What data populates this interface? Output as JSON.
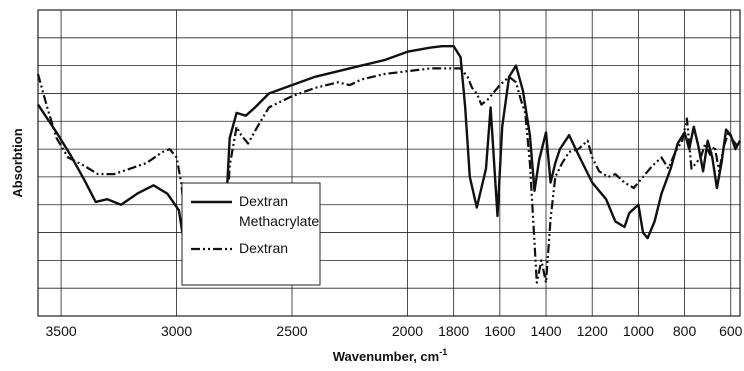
{
  "chart_data": {
    "type": "line",
    "title": "",
    "xlabel": "Wavenumber, cm",
    "xlabel_superscript": "-1",
    "ylabel": "Absorbtion",
    "xlim": [
      3600,
      560
    ],
    "x_reversed": true,
    "ylim": [
      0,
      11
    ],
    "y_ticks_labeled": false,
    "x_ticks": [
      3500,
      3000,
      2500,
      2000,
      1800,
      1600,
      1400,
      1200,
      1000,
      800,
      600
    ],
    "grid": true,
    "legend_position": "center-left",
    "series": [
      {
        "name": "Dextran Methacrylate",
        "style": "solid",
        "points": [
          [
            3600,
            7.6
          ],
          [
            3520,
            6.6
          ],
          [
            3460,
            5.8
          ],
          [
            3400,
            4.9
          ],
          [
            3350,
            4.1
          ],
          [
            3300,
            4.2
          ],
          [
            3240,
            4.0
          ],
          [
            3170,
            4.4
          ],
          [
            3100,
            4.7
          ],
          [
            3040,
            4.4
          ],
          [
            2990,
            3.8
          ],
          [
            2960,
            2.2
          ],
          [
            2930,
            1.8
          ],
          [
            2900,
            1.3
          ],
          [
            2850,
            1.5
          ],
          [
            2800,
            1.6
          ],
          [
            2770,
            6.4
          ],
          [
            2740,
            7.3
          ],
          [
            2700,
            7.2
          ],
          [
            2660,
            7.5
          ],
          [
            2600,
            8.0
          ],
          [
            2500,
            8.3
          ],
          [
            2400,
            8.6
          ],
          [
            2300,
            8.8
          ],
          [
            2200,
            9.0
          ],
          [
            2100,
            9.2
          ],
          [
            2000,
            9.5
          ],
          [
            1900,
            9.65
          ],
          [
            1850,
            9.7
          ],
          [
            1800,
            9.7
          ],
          [
            1770,
            9.3
          ],
          [
            1750,
            7.5
          ],
          [
            1730,
            5.0
          ],
          [
            1700,
            3.9
          ],
          [
            1660,
            5.3
          ],
          [
            1640,
            7.5
          ],
          [
            1610,
            3.6
          ],
          [
            1590,
            6.8
          ],
          [
            1560,
            8.6
          ],
          [
            1530,
            9.0
          ],
          [
            1500,
            8.1
          ],
          [
            1470,
            6.5
          ],
          [
            1450,
            4.5
          ],
          [
            1430,
            5.6
          ],
          [
            1400,
            6.6
          ],
          [
            1380,
            4.8
          ],
          [
            1360,
            5.5
          ],
          [
            1340,
            6.0
          ],
          [
            1300,
            6.5
          ],
          [
            1260,
            5.8
          ],
          [
            1230,
            5.3
          ],
          [
            1200,
            4.8
          ],
          [
            1170,
            4.5
          ],
          [
            1140,
            4.2
          ],
          [
            1100,
            3.4
          ],
          [
            1060,
            3.2
          ],
          [
            1040,
            3.7
          ],
          [
            1000,
            4.0
          ],
          [
            980,
            3.0
          ],
          [
            960,
            2.8
          ],
          [
            930,
            3.4
          ],
          [
            900,
            4.4
          ],
          [
            860,
            5.3
          ],
          [
            830,
            6.2
          ],
          [
            800,
            6.6
          ],
          [
            780,
            6.0
          ],
          [
            760,
            6.8
          ],
          [
            740,
            6.1
          ],
          [
            720,
            5.2
          ],
          [
            700,
            6.3
          ],
          [
            680,
            5.7
          ],
          [
            660,
            4.6
          ],
          [
            640,
            5.5
          ],
          [
            620,
            6.7
          ],
          [
            600,
            6.5
          ],
          [
            580,
            6.0
          ],
          [
            560,
            6.3
          ]
        ]
      },
      {
        "name": "Dextran",
        "style": "dash-dot-dot",
        "points": [
          [
            3600,
            8.7
          ],
          [
            3560,
            7.5
          ],
          [
            3520,
            6.4
          ],
          [
            3470,
            5.7
          ],
          [
            3400,
            5.4
          ],
          [
            3340,
            5.1
          ],
          [
            3270,
            5.1
          ],
          [
            3200,
            5.3
          ],
          [
            3130,
            5.5
          ],
          [
            3060,
            5.9
          ],
          [
            3030,
            6.0
          ],
          [
            3000,
            5.7
          ],
          [
            2980,
            4.8
          ],
          [
            2960,
            3.2
          ],
          [
            2940,
            1.7
          ],
          [
            2900,
            1.3
          ],
          [
            2850,
            1.3
          ],
          [
            2800,
            1.3
          ],
          [
            2770,
            5.4
          ],
          [
            2740,
            6.8
          ],
          [
            2720,
            6.5
          ],
          [
            2690,
            6.2
          ],
          [
            2650,
            6.8
          ],
          [
            2600,
            7.5
          ],
          [
            2500,
            7.9
          ],
          [
            2400,
            8.2
          ],
          [
            2300,
            8.4
          ],
          [
            2250,
            8.3
          ],
          [
            2200,
            8.5
          ],
          [
            2100,
            8.7
          ],
          [
            2000,
            8.8
          ],
          [
            1900,
            8.9
          ],
          [
            1800,
            8.9
          ],
          [
            1770,
            8.9
          ],
          [
            1740,
            8.6
          ],
          [
            1720,
            8.2
          ],
          [
            1700,
            8.0
          ],
          [
            1680,
            7.6
          ],
          [
            1650,
            7.8
          ],
          [
            1600,
            8.3
          ],
          [
            1560,
            8.6
          ],
          [
            1530,
            8.4
          ],
          [
            1510,
            7.8
          ],
          [
            1490,
            7.3
          ],
          [
            1470,
            5.5
          ],
          [
            1440,
            1.2
          ],
          [
            1420,
            2.0
          ],
          [
            1400,
            1.2
          ],
          [
            1380,
            3.5
          ],
          [
            1360,
            5.0
          ],
          [
            1330,
            5.5
          ],
          [
            1300,
            5.9
          ],
          [
            1260,
            6.0
          ],
          [
            1220,
            6.3
          ],
          [
            1200,
            5.7
          ],
          [
            1170,
            5.2
          ],
          [
            1130,
            5.0
          ],
          [
            1100,
            5.1
          ],
          [
            1060,
            4.8
          ],
          [
            1020,
            4.6
          ],
          [
            980,
            5.0
          ],
          [
            940,
            5.4
          ],
          [
            900,
            5.7
          ],
          [
            870,
            5.3
          ],
          [
            840,
            5.9
          ],
          [
            810,
            6.3
          ],
          [
            790,
            7.1
          ],
          [
            770,
            5.3
          ],
          [
            750,
            5.5
          ],
          [
            730,
            5.7
          ],
          [
            710,
            6.2
          ],
          [
            690,
            5.8
          ],
          [
            670,
            6.1
          ],
          [
            650,
            5.2
          ],
          [
            630,
            6.1
          ],
          [
            610,
            6.6
          ],
          [
            590,
            6.3
          ],
          [
            570,
            6.1
          ],
          [
            560,
            6.3
          ]
        ]
      }
    ]
  },
  "legend": {
    "items": [
      {
        "line1": "Dextran",
        "line2": "Methacrylate",
        "style": "solid"
      },
      {
        "line1": "Dextran",
        "line2": "",
        "style": "dash-dot-dot"
      }
    ]
  },
  "colors": {
    "line": "#111111",
    "grid": "#222222",
    "background": "#ffffff"
  }
}
